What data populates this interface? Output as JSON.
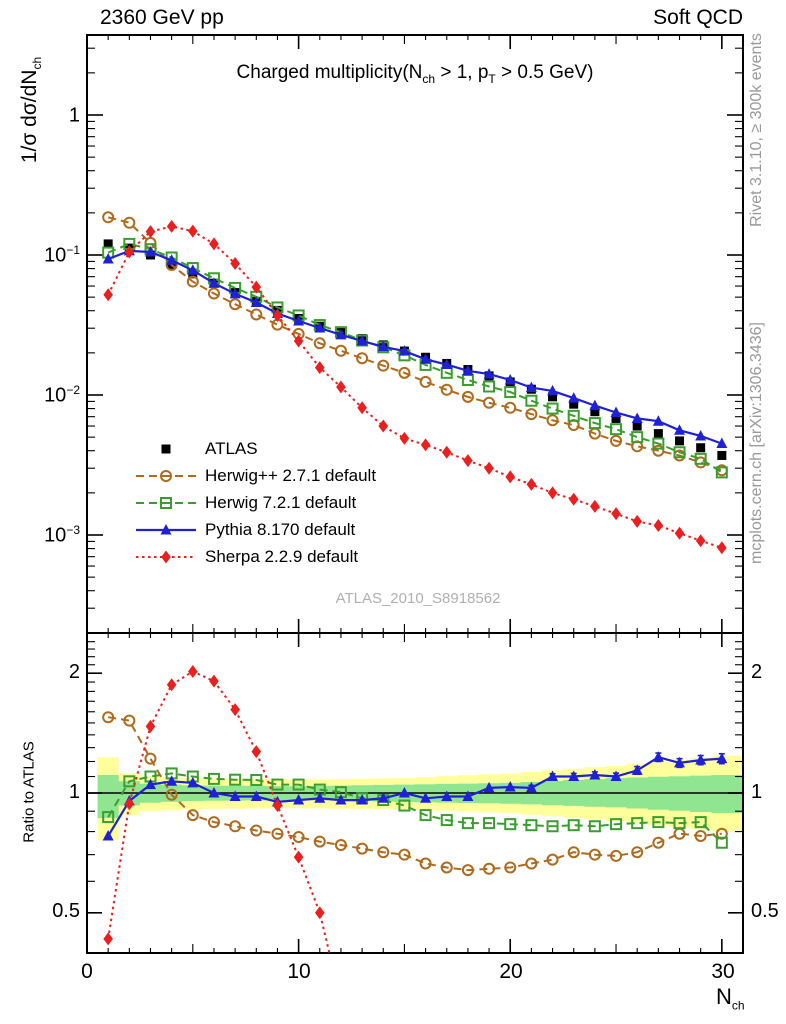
{
  "header": {
    "left": "2360 GeV pp",
    "right": "Soft QCD"
  },
  "title": {
    "part1": "Charged multiplicity(N",
    "sub1": "ch",
    "part2": " > 1, p",
    "sub2": "T",
    "part3": " > 0.5 GeV)"
  },
  "side_labels": {
    "rivet": "Rivet 3.1.10, ≥ 300k events",
    "mcplots": "mcplots.cern.ch [arXiv:1306.3436]"
  },
  "watermark": "ATLAS_2010_S8918562",
  "axes": {
    "x": {
      "label_base": "N",
      "label_sub": "ch",
      "tick_labels": [
        "0",
        "10",
        "20",
        "30"
      ],
      "tick_values": [
        0,
        10,
        20,
        30
      ],
      "range": [
        0,
        31
      ]
    },
    "y_main": {
      "label_base": "1/σ dσ/dN",
      "label_sub": "ch",
      "scale": "log",
      "tick_labels": [
        {
          "base": "1",
          "exp": ""
        },
        {
          "base": "10",
          "exp": "−1"
        },
        {
          "base": "10",
          "exp": "−2"
        },
        {
          "base": "10",
          "exp": "−3"
        }
      ],
      "tick_values": [
        1,
        0.1,
        0.01,
        0.001
      ]
    },
    "y_ratio": {
      "label": "Ratio to ATLAS",
      "scale": "log",
      "tick_labels": [
        "2",
        "1",
        "0.5"
      ],
      "tick_values": [
        2,
        1,
        0.5
      ],
      "range": [
        0.4,
        2.52
      ]
    }
  },
  "chart_data": {
    "type": "line",
    "title": "Charged multiplicity(N_ch > 1, p_T > 0.5 GeV)",
    "xlabel": "N_ch",
    "ylabel": "1/σ dσ/dN_ch",
    "ylabel_ratio": "Ratio to ATLAS",
    "x_range": [
      0,
      31
    ],
    "y_range_main": [
      0.0002,
      3.7
    ],
    "y_range_ratio": [
      0.4,
      2.52
    ],
    "grid": false,
    "legend_position": "left-middle",
    "x": [
      1,
      2,
      3,
      4,
      5,
      6,
      7,
      8,
      9,
      10,
      11,
      12,
      13,
      14,
      15,
      16,
      17,
      18,
      19,
      20,
      21,
      22,
      23,
      24,
      25,
      26,
      27,
      28,
      29,
      30
    ],
    "series": [
      {
        "id": "atlas",
        "label": "ATLAS",
        "color": "#000000",
        "marker": "square-filled",
        "line": "none",
        "values": [
          0.12,
          0.112,
          0.1,
          0.0857,
          0.0734,
          0.0629,
          0.0539,
          0.0467,
          0.0402,
          0.0352,
          0.031,
          0.028,
          0.0253,
          0.0228,
          0.0206,
          0.0186,
          0.0168,
          0.0152,
          0.0137,
          0.0124,
          0.011,
          0.0097,
          0.0086,
          0.0076,
          0.0068,
          0.006,
          0.0053,
          0.0047,
          0.0042,
          0.0037
        ]
      },
      {
        "id": "herwigpp",
        "label": "Herwig++ 2.7.1 default",
        "color": "#b06a1d",
        "marker": "circle-open",
        "line": "dashed",
        "values": [
          0.186,
          0.17,
          0.122,
          0.0848,
          0.0646,
          0.0531,
          0.0445,
          0.0376,
          0.0318,
          0.0273,
          0.0234,
          0.0207,
          0.0183,
          0.0162,
          0.0144,
          0.0124,
          0.0109,
          0.0097,
          0.0088,
          0.0081,
          0.0073,
          0.0066,
          0.0061,
          0.0053,
          0.0047,
          0.0043,
          0.004,
          0.0037,
          0.0033,
          0.0029
        ],
        "ratio": [
          1.55,
          1.52,
          1.22,
          0.99,
          0.88,
          0.845,
          0.825,
          0.805,
          0.79,
          0.775,
          0.755,
          0.74,
          0.725,
          0.71,
          0.7,
          0.665,
          0.65,
          0.64,
          0.645,
          0.65,
          0.665,
          0.68,
          0.71,
          0.7,
          0.695,
          0.71,
          0.75,
          0.79,
          0.78,
          0.79
        ]
      },
      {
        "id": "herwig7",
        "label": "Herwig 7.2.1 default",
        "color": "#3a9e2f",
        "marker": "square-open",
        "line": "dashed",
        "values": [
          0.104,
          0.12,
          0.11,
          0.096,
          0.0807,
          0.0682,
          0.0582,
          0.0503,
          0.0422,
          0.037,
          0.0316,
          0.0281,
          0.0245,
          0.0219,
          0.0192,
          0.0164,
          0.0144,
          0.0128,
          0.0115,
          0.0105,
          0.0091,
          0.008,
          0.0071,
          0.0063,
          0.0057,
          0.005,
          0.0045,
          0.0039,
          0.0035,
          0.0028
        ],
        "ratio": [
          0.87,
          1.07,
          1.1,
          1.12,
          1.1,
          1.085,
          1.08,
          1.078,
          1.05,
          1.05,
          1.02,
          1.005,
          0.97,
          0.96,
          0.93,
          0.88,
          0.855,
          0.84,
          0.84,
          0.835,
          0.83,
          0.825,
          0.83,
          0.825,
          0.835,
          0.84,
          0.845,
          0.84,
          0.845,
          0.75
        ]
      },
      {
        "id": "pythia",
        "label": "Pythia 8.170 default",
        "color": "#2020d4",
        "marker": "triangle-filled",
        "line": "solid",
        "values": [
          0.0936,
          0.107,
          0.105,
          0.0917,
          0.0778,
          0.0629,
          0.0528,
          0.0458,
          0.0382,
          0.0338,
          0.0301,
          0.0269,
          0.0243,
          0.0221,
          0.0206,
          0.018,
          0.0165,
          0.0149,
          0.0141,
          0.0128,
          0.0113,
          0.0107,
          0.0095,
          0.0084,
          0.0075,
          0.0068,
          0.0065,
          0.0056,
          0.0051,
          0.0045
        ],
        "ratio": [
          0.78,
          0.955,
          1.05,
          1.07,
          1.06,
          1.0,
          0.98,
          0.98,
          0.95,
          0.96,
          0.97,
          0.96,
          0.96,
          0.97,
          1.0,
          0.97,
          0.98,
          0.98,
          1.03,
          1.035,
          1.03,
          1.1,
          1.1,
          1.11,
          1.1,
          1.14,
          1.23,
          1.19,
          1.21,
          1.22
        ],
        "ratio_err": [
          0,
          0,
          0,
          0,
          0,
          0,
          0,
          0,
          0,
          0,
          0,
          0,
          0,
          0,
          0,
          0,
          0,
          0,
          0,
          0,
          0.015,
          0.018,
          0.02,
          0.02,
          0.022,
          0.025,
          0.03,
          0.03,
          0.032,
          0.035
        ]
      },
      {
        "id": "sherpa",
        "label": "Sherpa 2.2.9 default",
        "color": "#ea1f1f",
        "marker": "diamond-filled",
        "line": "dotted",
        "values": [
          0.052,
          0.105,
          0.147,
          0.16,
          0.148,
          0.12,
          0.087,
          0.059,
          0.037,
          0.0243,
          0.0157,
          0.0114,
          0.0081,
          0.006,
          0.0049,
          0.0044,
          0.0039,
          0.0034,
          0.003,
          0.0026,
          0.0023,
          0.002,
          0.0018,
          0.0016,
          0.00142,
          0.00125,
          0.00117,
          0.00103,
          0.00091,
          0.00081
        ],
        "ratio": [
          0.43,
          0.94,
          1.47,
          1.87,
          2.02,
          1.91,
          1.62,
          1.27,
          0.93,
          0.69,
          0.5,
          0.3
        ]
      }
    ],
    "uncertainty_bands": {
      "outer_color": "#ffff9c",
      "inner_color": "#90e690",
      "outer_lo": [
        0.76,
        0.88,
        0.9,
        0.905,
        0.91,
        0.912,
        0.913,
        0.914,
        0.915,
        0.915,
        0.914,
        0.913,
        0.912,
        0.911,
        0.91,
        0.906,
        0.902,
        0.898,
        0.894,
        0.89,
        0.882,
        0.874,
        0.866,
        0.858,
        0.85,
        0.84,
        0.83,
        0.82,
        0.81,
        0.8
      ],
      "outer_hi": [
        1.23,
        1.12,
        1.1,
        1.095,
        1.09,
        1.088,
        1.087,
        1.086,
        1.085,
        1.08,
        1.082,
        1.084,
        1.086,
        1.088,
        1.09,
        1.096,
        1.102,
        1.108,
        1.114,
        1.12,
        1.13,
        1.14,
        1.15,
        1.16,
        1.17,
        1.184,
        1.198,
        1.212,
        1.226,
        1.24
      ],
      "inner_lo": [
        0.865,
        0.93,
        0.945,
        0.95,
        0.955,
        0.956,
        0.957,
        0.958,
        0.959,
        0.96,
        0.958,
        0.956,
        0.954,
        0.952,
        0.95,
        0.948,
        0.946,
        0.944,
        0.942,
        0.94,
        0.936,
        0.932,
        0.928,
        0.924,
        0.92,
        0.914,
        0.908,
        0.902,
        0.896,
        0.89
      ],
      "inner_hi": [
        1.11,
        1.07,
        1.055,
        1.05,
        1.045,
        1.044,
        1.043,
        1.042,
        1.041,
        1.04,
        1.042,
        1.044,
        1.046,
        1.048,
        1.05,
        1.052,
        1.054,
        1.056,
        1.058,
        1.06,
        1.066,
        1.072,
        1.078,
        1.084,
        1.09,
        1.094,
        1.098,
        1.102,
        1.106,
        1.11
      ]
    }
  }
}
